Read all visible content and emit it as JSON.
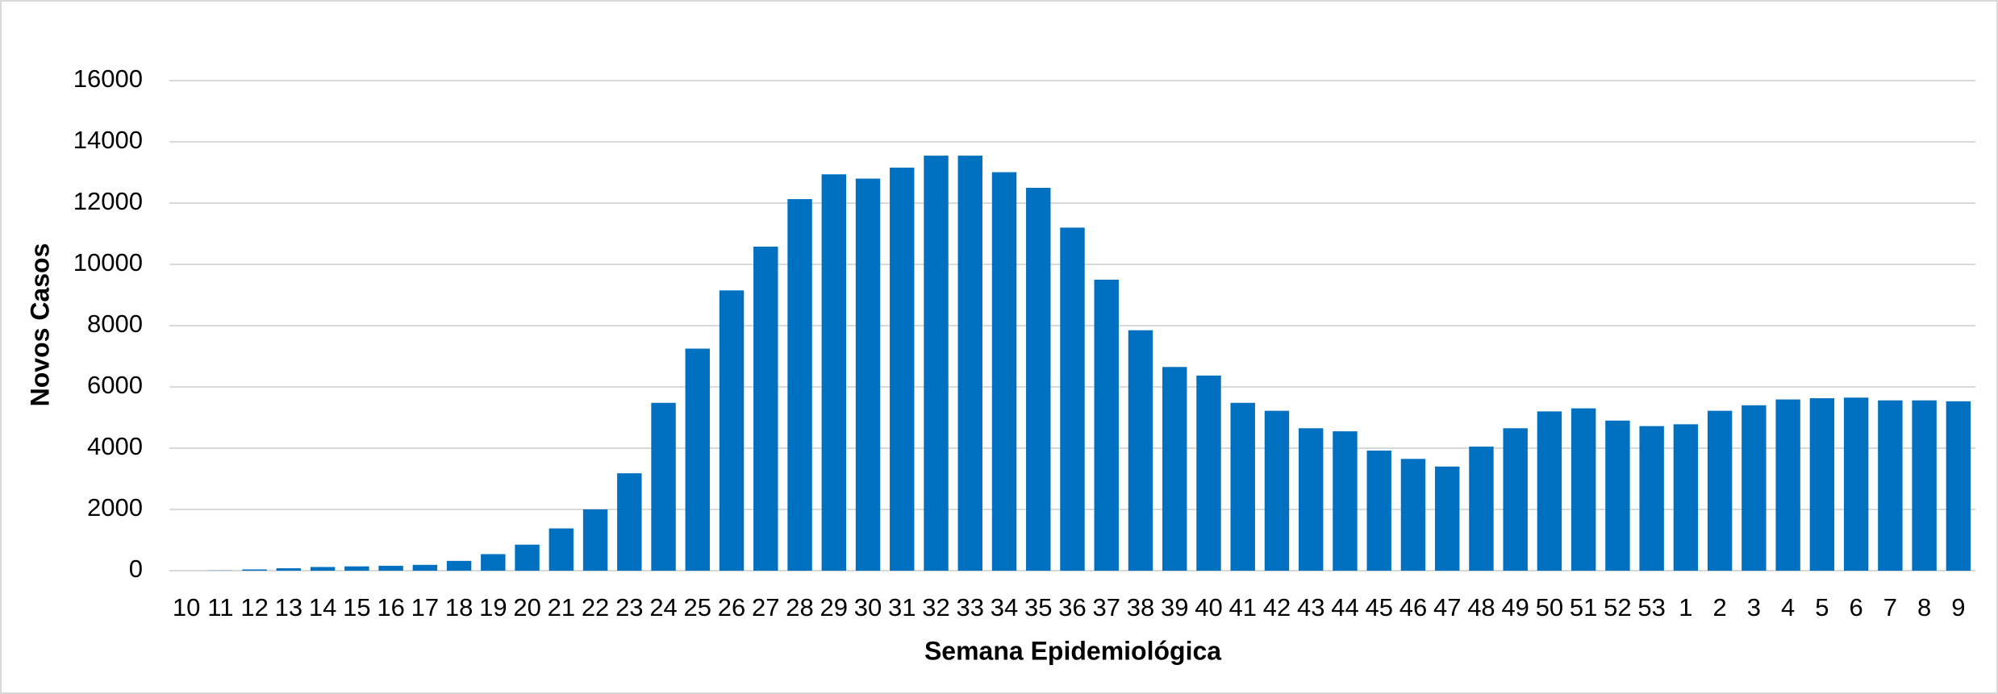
{
  "chart_data": {
    "type": "bar",
    "x_label": "Semana Epidemiológica",
    "y_label": "Novos Casos",
    "categories": [
      "10",
      "11",
      "12",
      "13",
      "14",
      "15",
      "16",
      "17",
      "18",
      "19",
      "20",
      "21",
      "22",
      "23",
      "24",
      "25",
      "26",
      "27",
      "28",
      "29",
      "30",
      "31",
      "32",
      "33",
      "34",
      "35",
      "36",
      "37",
      "38",
      "39",
      "40",
      "41",
      "42",
      "43",
      "44",
      "45",
      "46",
      "47",
      "48",
      "49",
      "50",
      "51",
      "52",
      "53",
      "1",
      "2",
      "3",
      "4",
      "5",
      "6",
      "7",
      "8",
      "9"
    ],
    "values": [
      0,
      5,
      40,
      80,
      120,
      140,
      160,
      190,
      320,
      540,
      850,
      1380,
      2000,
      3180,
      5480,
      7250,
      9150,
      10580,
      12130,
      12940,
      12800,
      13160,
      13550,
      13550,
      13010,
      12500,
      11200,
      9500,
      7850,
      6650,
      6370,
      5480,
      5220,
      4650,
      4550,
      3920,
      3650,
      3400,
      4050,
      4650,
      5200,
      5300,
      4900,
      4720,
      4780,
      5220,
      5400,
      5590,
      5630,
      5650,
      5560,
      5560,
      5530
    ],
    "color": "#0070c0",
    "ylim": [
      0,
      16000
    ],
    "yticks": [
      0,
      2000,
      4000,
      6000,
      8000,
      10000,
      12000,
      14000,
      16000
    ],
    "grid": true
  }
}
